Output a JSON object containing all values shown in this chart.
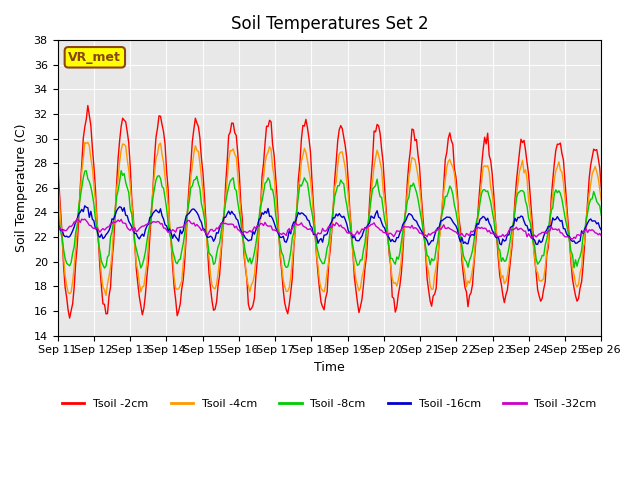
{
  "title": "Soil Temperatures Set 2",
  "xlabel": "Time",
  "ylabel": "Soil Temperature (C)",
  "ylim": [
    14,
    38
  ],
  "yticks": [
    14,
    16,
    18,
    20,
    22,
    24,
    26,
    28,
    30,
    32,
    34,
    36,
    38
  ],
  "x_labels": [
    "Sep 11",
    "Sep 12",
    "Sep 13",
    "Sep 14",
    "Sep 15",
    "Sep 16",
    "Sep 17",
    "Sep 18",
    "Sep 19",
    "Sep 20",
    "Sep 21",
    "Sep 22",
    "Sep 23",
    "Sep 24",
    "Sep 25",
    "Sep 26"
  ],
  "background_color": "#e8e8e8",
  "series": [
    {
      "label": "Tsoil -2cm",
      "color": "#ff0000"
    },
    {
      "label": "Tsoil -4cm",
      "color": "#ff9900"
    },
    {
      "label": "Tsoil -8cm",
      "color": "#00cc00"
    },
    {
      "label": "Tsoil -16cm",
      "color": "#0000cc"
    },
    {
      "label": "Tsoil -32cm",
      "color": "#cc00cc"
    }
  ],
  "annotation_text": "VR_met",
  "annotation_bg": "#ffff00",
  "annotation_border": "#8B4513",
  "n_days": 15
}
